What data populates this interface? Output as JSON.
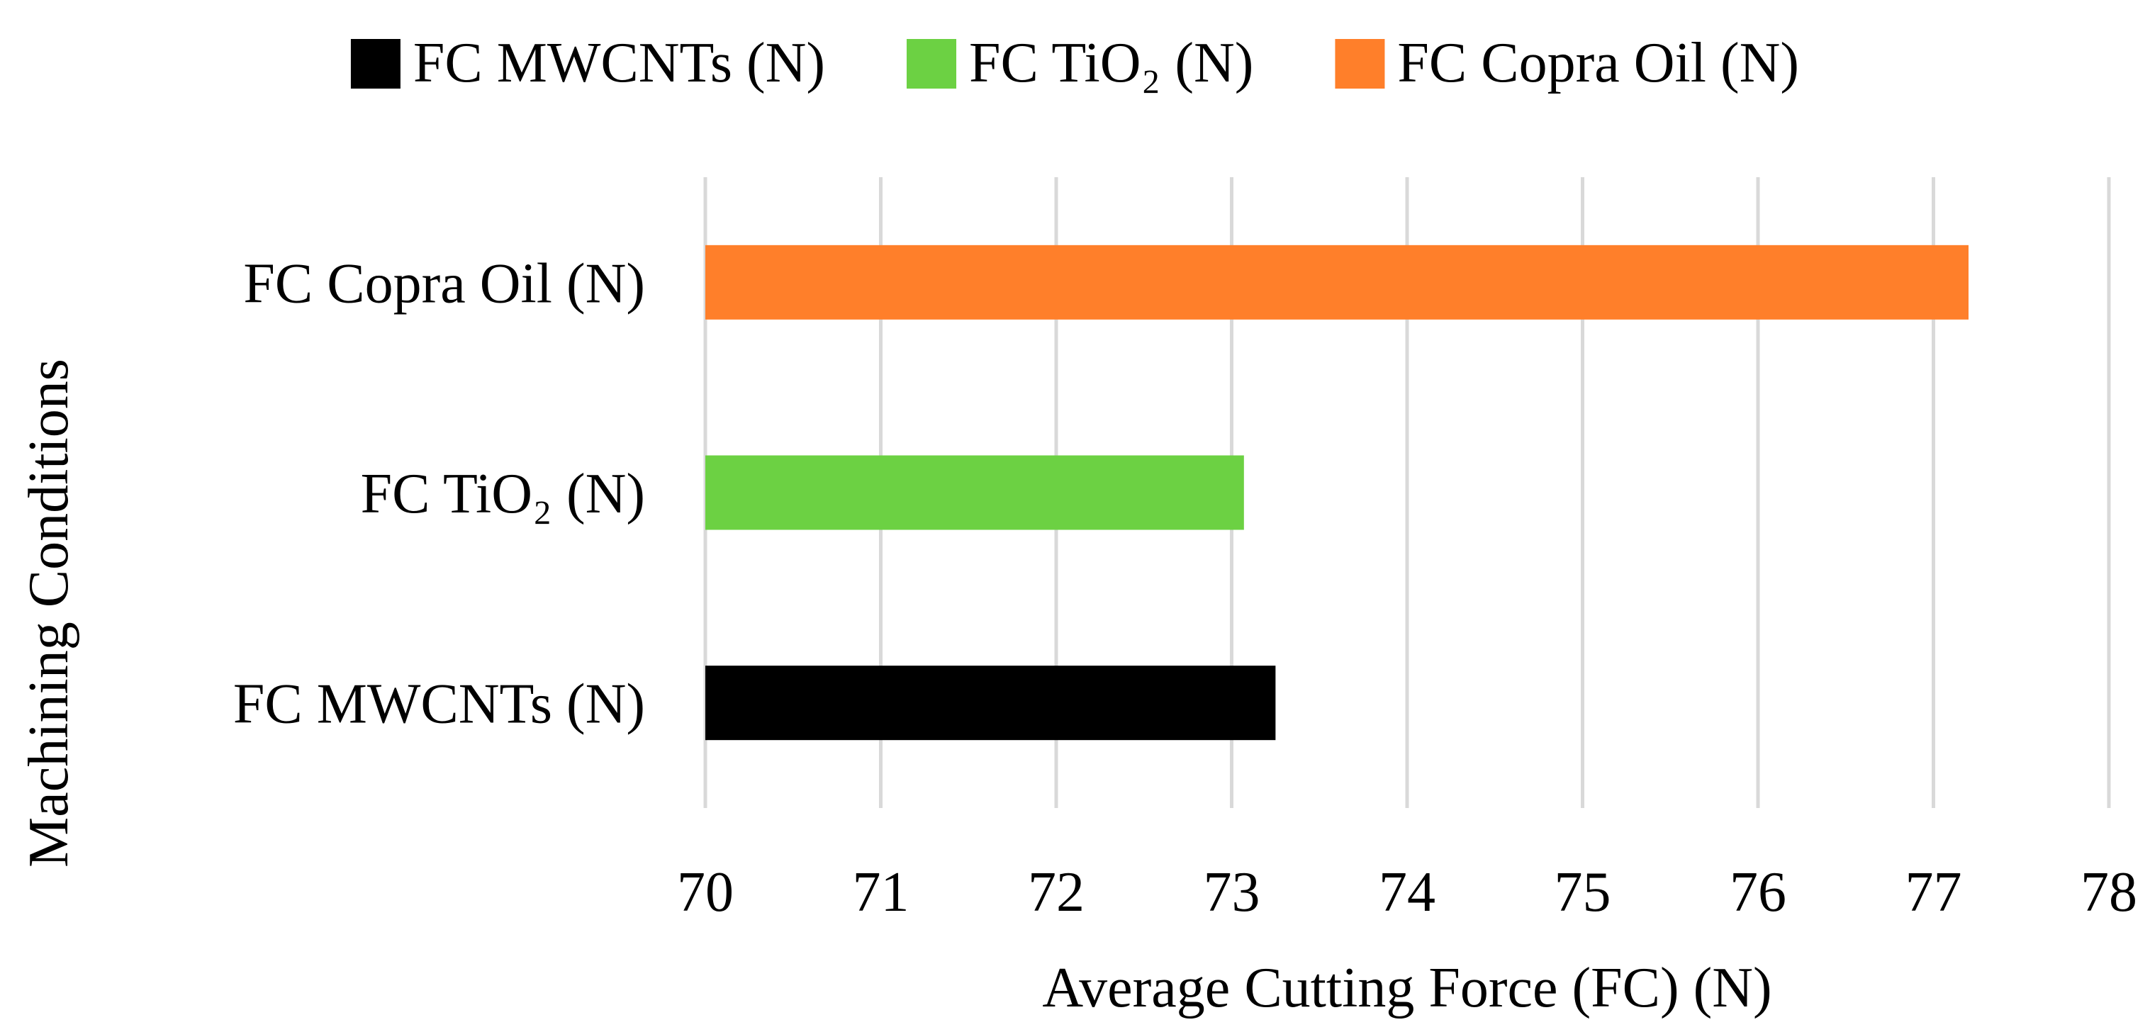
{
  "chart_data": {
    "type": "bar",
    "orientation": "horizontal",
    "title": "",
    "xlabel": "Average Cutting Force (FC) (N)",
    "ylabel": "Machining Conditions",
    "xlim": [
      70,
      78
    ],
    "xticks": [
      "70",
      "71",
      "72",
      "73",
      "74",
      "75",
      "76",
      "77",
      "78"
    ],
    "grid": "vertical",
    "legend_position": "top",
    "categories": [
      "FC MWCNTs (N)",
      "FC TiO₂ (N)",
      "FC Copra Oil (N)"
    ],
    "series": [
      {
        "name": "FC MWCNTs (N)",
        "category": "FC MWCNTs (N)",
        "value": 73.25,
        "color": "#000000"
      },
      {
        "name": "FC TiO₂ (N)",
        "category": "FC TiO₂ (N)",
        "value": 73.07,
        "color": "#6CD143"
      },
      {
        "name": "FC Copra Oil (N)",
        "category": "FC Copra Oil (N)",
        "value": 77.2,
        "color": "#FF7F2A"
      }
    ],
    "legend": [
      "FC MWCNTs (N)",
      "FC TiO₂ (N)",
      "FC Copra Oil (N)"
    ]
  },
  "colors": {
    "grid": "#D9D9D9",
    "text": "#000000"
  }
}
